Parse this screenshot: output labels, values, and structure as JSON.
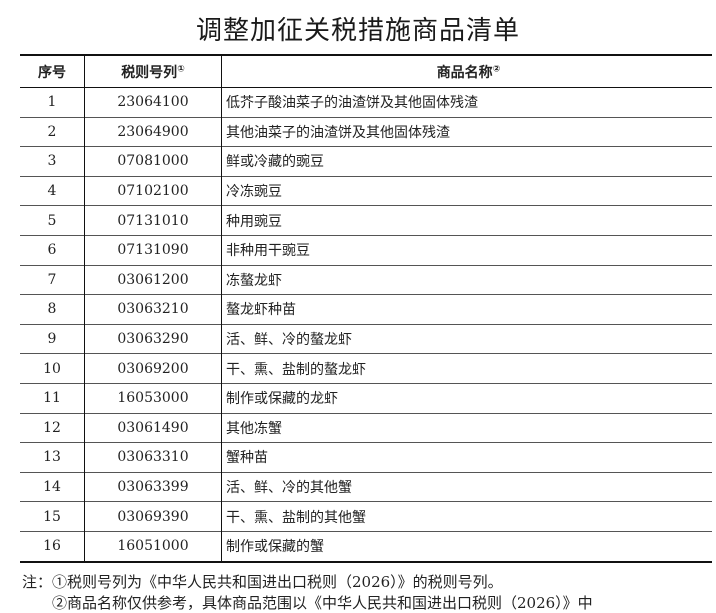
{
  "title": "调整加征关税措施商品清单",
  "headers": {
    "seq": "序号",
    "code": "税则号列",
    "code_mark": "①",
    "name": "商品名称",
    "name_mark": "②"
  },
  "rows": [
    {
      "seq": "1",
      "code": "23064100",
      "name": "低芥子酸油菜子的油渣饼及其他固体残渣"
    },
    {
      "seq": "2",
      "code": "23064900",
      "name": "其他油菜子的油渣饼及其他固体残渣"
    },
    {
      "seq": "3",
      "code": "07081000",
      "name": "鲜或冷藏的豌豆"
    },
    {
      "seq": "4",
      "code": "07102100",
      "name": "冷冻豌豆"
    },
    {
      "seq": "5",
      "code": "07131010",
      "name": "种用豌豆"
    },
    {
      "seq": "6",
      "code": "07131090",
      "name": "非种用干豌豆"
    },
    {
      "seq": "7",
      "code": "03061200",
      "name": "冻螯龙虾"
    },
    {
      "seq": "8",
      "code": "03063210",
      "name": "螯龙虾种苗"
    },
    {
      "seq": "9",
      "code": "03063290",
      "name": "活、鲜、冷的螯龙虾"
    },
    {
      "seq": "10",
      "code": "03069200",
      "name": "干、熏、盐制的螯龙虾"
    },
    {
      "seq": "11",
      "code": "16053000",
      "name": "制作或保藏的龙虾"
    },
    {
      "seq": "12",
      "code": "03061490",
      "name": "其他冻蟹"
    },
    {
      "seq": "13",
      "code": "03063310",
      "name": "蟹种苗"
    },
    {
      "seq": "14",
      "code": "03063399",
      "name": "活、鲜、冷的其他蟹"
    },
    {
      "seq": "15",
      "code": "03069390",
      "name": "干、熏、盐制的其他蟹"
    },
    {
      "seq": "16",
      "code": "16051000",
      "name": "制作或保藏的蟹"
    }
  ],
  "notes": {
    "line1": "注：①税则号列为《中华人民共和国进出口税则（2026）》的税则号列。",
    "line2": "　　②商品名称仅供参考，具体商品范围以《中华人民共和国进出口税则（2026）》中"
  }
}
